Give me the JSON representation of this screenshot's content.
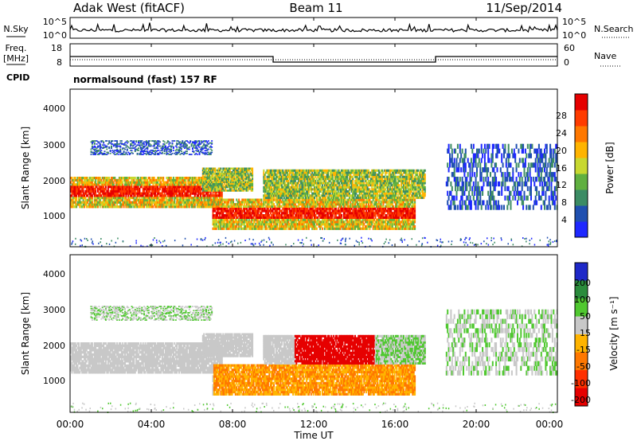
{
  "header": {
    "radar": "Adak West (fitACF)",
    "beam": "Beam 11",
    "date": "11/Sep/2014"
  },
  "noise_panel": {
    "left_label": "N.Sky",
    "left_top_tick": "10^5",
    "left_bottom_tick": "10^0",
    "right_label": "N.Search",
    "right_top_tick": "10^5",
    "right_bottom_tick": "10^0"
  },
  "freq_panel": {
    "left_label_line1": "Freq.",
    "left_label_line2": "[MHz]",
    "left_ticks": [
      "18",
      "8"
    ],
    "right_label": "Nave",
    "right_ticks": [
      "60",
      "0"
    ],
    "cpid_label": "CPID",
    "cpid_text": "normalsound (fast) 157 RF"
  },
  "power_panel": {
    "ylabel": "Slant Range [km]",
    "yticks": [
      "4000",
      "3000",
      "2000",
      "1000"
    ],
    "colorbar_label": "Power [dB]",
    "colorbar_ticks": [
      "28",
      "24",
      "20",
      "16",
      "12",
      "8",
      "4"
    ],
    "colors": [
      "#1e28ff",
      "#2050b0",
      "#3c8c64",
      "#60b040",
      "#c8d830",
      "#ffb400",
      "#ff7800",
      "#ff3c00",
      "#e60000"
    ]
  },
  "velocity_panel": {
    "ylabel": "Slant Range [km]",
    "yticks": [
      "4000",
      "3000",
      "2000",
      "1000"
    ],
    "colorbar_label": "Velocity [m s⁻¹]",
    "colorbar_ticks": [
      "200",
      "100",
      "50",
      "15",
      "-15",
      "-50",
      "-100",
      "-200"
    ],
    "colors": [
      "#1e28c8",
      "#2a8c3c",
      "#50c830",
      "#c8c8c8",
      "#ffb400",
      "#ff7800",
      "#ff3000",
      "#e60000"
    ]
  },
  "xaxis": {
    "label": "Time UT",
    "ticks": [
      "00:00",
      "04:00",
      "08:00",
      "12:00",
      "16:00",
      "20:00",
      "00:00"
    ]
  },
  "chart_data": {
    "type": "heatmap",
    "x_range_hours": [
      0,
      24
    ],
    "y_range_km": [
      180,
      4500
    ],
    "freq_mhz": {
      "segments": [
        {
          "start": 0,
          "end": 10,
          "value": 13
        },
        {
          "start": 10,
          "end": 18,
          "value": 10.5
        },
        {
          "start": 18,
          "end": 24,
          "value": 13
        }
      ]
    },
    "power_bands": [
      {
        "t0": 0,
        "t1": 7.5,
        "r0": 1250,
        "r1": 2100,
        "level": "strong"
      },
      {
        "t0": 6.5,
        "t1": 9,
        "r0": 1700,
        "r1": 2350,
        "level": "medium"
      },
      {
        "t0": 7,
        "t1": 17,
        "r0": 650,
        "r1": 1500,
        "level": "strong"
      },
      {
        "t0": 9.5,
        "t1": 17.5,
        "r0": 1500,
        "r1": 2300,
        "level": "medium"
      },
      {
        "t0": 1,
        "t1": 7,
        "r0": 2700,
        "r1": 3100,
        "level": "weak"
      },
      {
        "t0": 18.5,
        "t1": 24,
        "r0": 1200,
        "r1": 3000,
        "level": "weak"
      }
    ]
  }
}
